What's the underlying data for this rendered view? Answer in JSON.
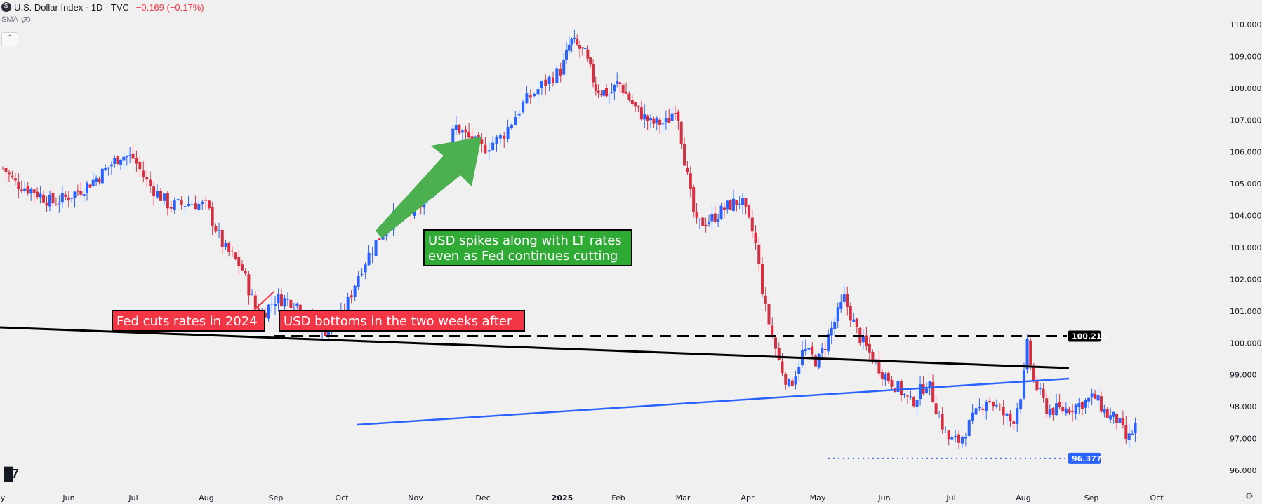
{
  "header": {
    "title": "U.S. Dollar Index · 1D · TVC",
    "change": "−0.169 (−0.17%)",
    "sma_label": "SMA"
  },
  "chart_data": {
    "type": "candlestick",
    "title": "U.S. Dollar Index · 1D · TVC",
    "xlabel": "",
    "ylabel": "",
    "ylim": [
      95.6,
      110.3
    ],
    "y_ticks": [
      {
        "v": 110,
        "label": "110.000"
      },
      {
        "v": 109,
        "label": "109.000"
      },
      {
        "v": 108,
        "label": "108.000"
      },
      {
        "v": 107,
        "label": "107.000"
      },
      {
        "v": 106,
        "label": "106.000"
      },
      {
        "v": 105,
        "label": "105.000"
      },
      {
        "v": 104,
        "label": "104.000"
      },
      {
        "v": 103,
        "label": "103.000"
      },
      {
        "v": 102,
        "label": "102.000"
      },
      {
        "v": 101,
        "label": "101.000"
      },
      {
        "v": 100,
        "label": "100.000"
      },
      {
        "v": 99,
        "label": "99.000"
      },
      {
        "v": 98,
        "label": "98.000"
      },
      {
        "v": 97,
        "label": "97.000"
      },
      {
        "v": 96,
        "label": "96.000"
      }
    ],
    "x_ticks": [
      {
        "t": 0,
        "label": "y",
        "bold": false
      },
      {
        "t": 1,
        "label": "Jun",
        "bold": false
      },
      {
        "t": 2,
        "label": "Jul",
        "bold": false
      },
      {
        "t": 3,
        "label": "Aug",
        "bold": false
      },
      {
        "t": 4,
        "label": "Sep",
        "bold": false
      },
      {
        "t": 5,
        "label": "Oct",
        "bold": false
      },
      {
        "t": 6,
        "label": "Nov",
        "bold": false
      },
      {
        "t": 7,
        "label": "Dec",
        "bold": false
      },
      {
        "t": 8,
        "label": "2025",
        "bold": true
      },
      {
        "t": 9,
        "label": "Feb",
        "bold": false
      },
      {
        "t": 10,
        "label": "Mar",
        "bold": false
      },
      {
        "t": 11,
        "label": "Apr",
        "bold": false
      },
      {
        "t": 12,
        "label": "May",
        "bold": false
      },
      {
        "t": 13,
        "label": "Jun",
        "bold": false
      },
      {
        "t": 14,
        "label": "Jul",
        "bold": false
      },
      {
        "t": 15,
        "label": "Aug",
        "bold": false
      },
      {
        "t": 16,
        "label": "Sep",
        "bold": false
      },
      {
        "t": 17,
        "label": "Oct",
        "bold": false
      }
    ],
    "x_range": [
      0,
      18.2
    ],
    "price_anchors": [
      [
        0.0,
        105.5
      ],
      [
        0.2,
        105.0
      ],
      [
        0.45,
        104.8
      ],
      [
        0.75,
        104.4
      ],
      [
        1.0,
        104.6
      ],
      [
        1.25,
        104.9
      ],
      [
        1.5,
        105.3
      ],
      [
        1.8,
        105.9
      ],
      [
        2.0,
        105.8
      ],
      [
        2.2,
        105.0
      ],
      [
        2.5,
        104.3
      ],
      [
        2.8,
        104.4
      ],
      [
        3.0,
        104.3
      ],
      [
        3.25,
        103.0
      ],
      [
        3.5,
        102.4
      ],
      [
        3.75,
        100.8
      ],
      [
        4.0,
        101.4
      ],
      [
        4.3,
        101.3
      ],
      [
        4.5,
        100.7
      ],
      [
        4.75,
        100.4
      ],
      [
        5.0,
        100.8
      ],
      [
        5.25,
        102.3
      ],
      [
        5.5,
        103.3
      ],
      [
        5.75,
        104.1
      ],
      [
        6.0,
        104.1
      ],
      [
        6.2,
        104.7
      ],
      [
        6.4,
        105.8
      ],
      [
        6.6,
        106.8
      ],
      [
        6.8,
        106.4
      ],
      [
        7.0,
        106.1
      ],
      [
        7.25,
        106.5
      ],
      [
        7.5,
        107.5
      ],
      [
        7.75,
        108.1
      ],
      [
        8.0,
        108.6
      ],
      [
        8.15,
        109.5
      ],
      [
        8.4,
        109.1
      ],
      [
        8.6,
        108.0
      ],
      [
        8.85,
        107.8
      ],
      [
        9.0,
        108.2
      ],
      [
        9.25,
        107.4
      ],
      [
        9.5,
        106.9
      ],
      [
        9.75,
        106.9
      ],
      [
        9.9,
        107.5
      ],
      [
        10.05,
        105.4
      ],
      [
        10.2,
        103.7
      ],
      [
        10.45,
        103.9
      ],
      [
        10.7,
        104.3
      ],
      [
        10.9,
        104.5
      ],
      [
        11.1,
        103.3
      ],
      [
        11.25,
        101.1
      ],
      [
        11.45,
        99.4
      ],
      [
        11.6,
        98.6
      ],
      [
        11.8,
        99.8
      ],
      [
        12.0,
        99.4
      ],
      [
        12.2,
        100.4
      ],
      [
        12.4,
        101.4
      ],
      [
        12.6,
        100.3
      ],
      [
        12.8,
        99.6
      ],
      [
        13.0,
        99.0
      ],
      [
        13.2,
        98.6
      ],
      [
        13.4,
        98.1
      ],
      [
        13.65,
        98.8
      ],
      [
        13.8,
        97.8
      ],
      [
        13.95,
        97.0
      ],
      [
        14.1,
        96.9
      ],
      [
        14.3,
        97.6
      ],
      [
        14.5,
        98.3
      ],
      [
        14.7,
        97.8
      ],
      [
        14.85,
        97.5
      ],
      [
        15.0,
        98.7
      ],
      [
        15.05,
        100.0
      ],
      [
        15.15,
        98.8
      ],
      [
        15.35,
        97.9
      ],
      [
        15.6,
        97.9
      ],
      [
        15.85,
        98.1
      ],
      [
        16.05,
        98.3
      ],
      [
        16.25,
        97.7
      ],
      [
        16.4,
        97.6
      ],
      [
        16.55,
        96.9
      ],
      [
        16.7,
        97.5
      ]
    ],
    "trend_up": true,
    "annotations": {
      "callout_green": "USD spikes along with LT rates\neven as Fed continues cutting",
      "callout_red_1": "Fed cuts rates in 2024",
      "callout_red_2": "USD bottoms in the two weeks after",
      "level_high": "100.215",
      "level_low": "96.377"
    },
    "colors": {
      "up": "#2962ff",
      "down": "#d62f42",
      "background": "#f0f0f0",
      "green_callout": "#2eaa35",
      "green_arrow": "#4caf50",
      "red_callout": "#f23645",
      "blue_line": "#2962ff",
      "black_line": "#000000"
    },
    "grid": false,
    "legend": "none"
  }
}
